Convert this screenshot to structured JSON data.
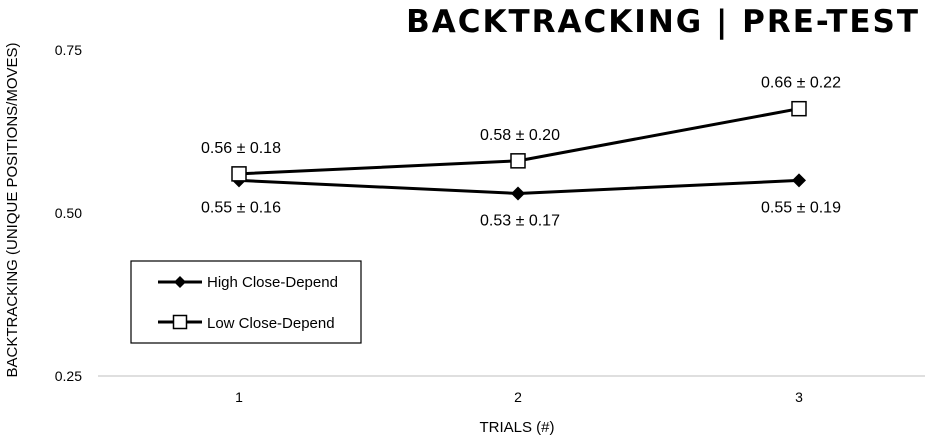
{
  "chart_data": {
    "type": "line",
    "title": "BACKTRACKING | PRE-TEST",
    "xlabel": "TRIALS (#)",
    "ylabel": "BACKTRACKING (UNIQUE POSITIONS/MOVES)",
    "categories": [
      "1",
      "2",
      "3"
    ],
    "ylim": [
      0.25,
      0.75
    ],
    "yticks": [
      "0.25",
      "0.50",
      "0.75"
    ],
    "grid": false,
    "legend_position": "bottom-left",
    "series": [
      {
        "name": "High Close-Depend",
        "marker": "diamond-filled",
        "values": [
          0.55,
          0.53,
          0.55
        ],
        "labels": [
          "0.55 ± 0.16",
          "0.53 ± 0.17",
          "0.55 ± 0.19"
        ]
      },
      {
        "name": "Low Close-Depend",
        "marker": "square-open",
        "values": [
          0.56,
          0.58,
          0.66
        ],
        "labels": [
          "0.56 ± 0.18",
          "0.58 ± 0.20",
          "0.66 ± 0.22"
        ]
      }
    ],
    "colors": {
      "line": "#000000",
      "axis": "#bfbfbf",
      "marker_fill_open": "#ffffff"
    }
  }
}
